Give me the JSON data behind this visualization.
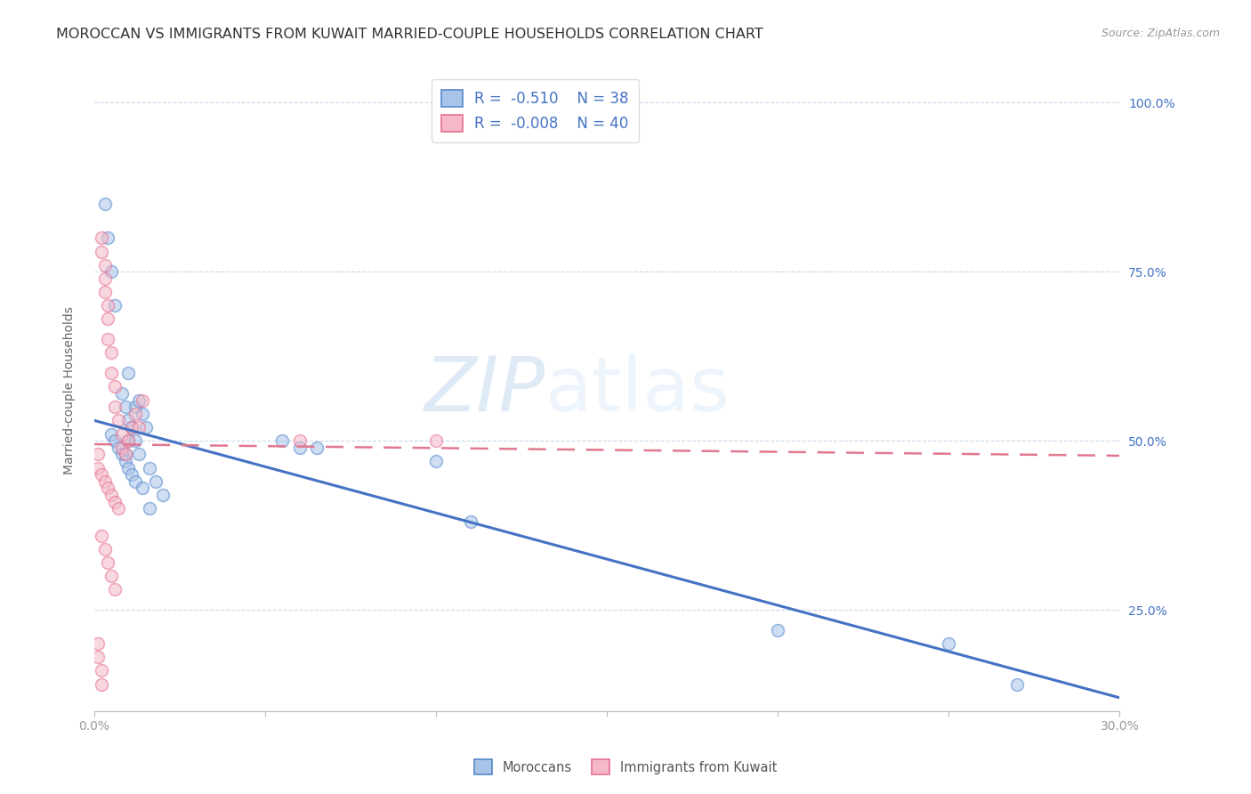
{
  "title": "MOROCCAN VS IMMIGRANTS FROM KUWAIT MARRIED-COUPLE HOUSEHOLDS CORRELATION CHART",
  "source": "Source: ZipAtlas.com",
  "ylabel": "Married-couple Households",
  "ytick_labels": [
    "100.0%",
    "75.0%",
    "50.0%",
    "25.0%"
  ],
  "ytick_values": [
    1.0,
    0.75,
    0.5,
    0.25
  ],
  "xlim": [
    0.0,
    0.3
  ],
  "ylim": [
    0.1,
    1.05
  ],
  "blue_R": "-0.510",
  "blue_N": "38",
  "pink_R": "-0.008",
  "pink_N": "40",
  "blue_fill": "#a8c4e8",
  "pink_fill": "#f4b8c8",
  "blue_edge": "#5588cc",
  "pink_edge": "#e87090",
  "blue_line_color": "#4472c4",
  "pink_line_color": "#e07890",
  "legend_label_blue": "Moroccans",
  "legend_label_pink": "Immigrants from Kuwait",
  "blue_scatter_x": [
    0.01,
    0.008,
    0.009,
    0.01,
    0.011,
    0.012,
    0.01,
    0.009,
    0.013,
    0.014,
    0.015,
    0.012,
    0.013,
    0.016,
    0.018,
    0.02,
    0.005,
    0.006,
    0.007,
    0.008,
    0.009,
    0.01,
    0.011,
    0.012,
    0.014,
    0.016,
    0.055,
    0.06,
    0.065,
    0.1,
    0.11,
    0.2,
    0.25,
    0.27,
    0.003,
    0.004,
    0.005,
    0.006
  ],
  "blue_scatter_y": [
    0.6,
    0.57,
    0.55,
    0.53,
    0.52,
    0.55,
    0.5,
    0.48,
    0.56,
    0.54,
    0.52,
    0.5,
    0.48,
    0.46,
    0.44,
    0.42,
    0.51,
    0.5,
    0.49,
    0.48,
    0.47,
    0.46,
    0.45,
    0.44,
    0.43,
    0.4,
    0.5,
    0.49,
    0.49,
    0.47,
    0.38,
    0.22,
    0.2,
    0.14,
    0.85,
    0.8,
    0.75,
    0.7
  ],
  "pink_scatter_x": [
    0.002,
    0.002,
    0.003,
    0.003,
    0.003,
    0.004,
    0.004,
    0.004,
    0.005,
    0.005,
    0.006,
    0.006,
    0.007,
    0.008,
    0.008,
    0.009,
    0.01,
    0.011,
    0.012,
    0.013,
    0.014,
    0.002,
    0.003,
    0.004,
    0.005,
    0.006,
    0.001,
    0.001,
    0.002,
    0.002,
    0.06,
    0.1,
    0.001,
    0.001,
    0.002,
    0.003,
    0.004,
    0.005,
    0.006,
    0.007
  ],
  "pink_scatter_y": [
    0.8,
    0.78,
    0.76,
    0.74,
    0.72,
    0.7,
    0.68,
    0.65,
    0.63,
    0.6,
    0.58,
    0.55,
    0.53,
    0.51,
    0.49,
    0.48,
    0.5,
    0.52,
    0.54,
    0.52,
    0.56,
    0.36,
    0.34,
    0.32,
    0.3,
    0.28,
    0.2,
    0.18,
    0.16,
    0.14,
    0.5,
    0.5,
    0.48,
    0.46,
    0.45,
    0.44,
    0.43,
    0.42,
    0.41,
    0.4
  ],
  "blue_line_x0": 0.0,
  "blue_line_y0": 0.53,
  "blue_line_x1": 0.3,
  "blue_line_y1": 0.12,
  "pink_line_x0": 0.0,
  "pink_line_y0": 0.495,
  "pink_line_x1": 0.3,
  "pink_line_y1": 0.478,
  "watermark_zip": "ZIP",
  "watermark_atlas": "atlas",
  "background_color": "#ffffff",
  "grid_color": "#c8d8ea",
  "title_fontsize": 11.5,
  "source_fontsize": 9,
  "axis_label_fontsize": 10,
  "tick_fontsize": 10,
  "scatter_size": 100,
  "scatter_alpha": 0.55,
  "scatter_linewidth": 1.2
}
